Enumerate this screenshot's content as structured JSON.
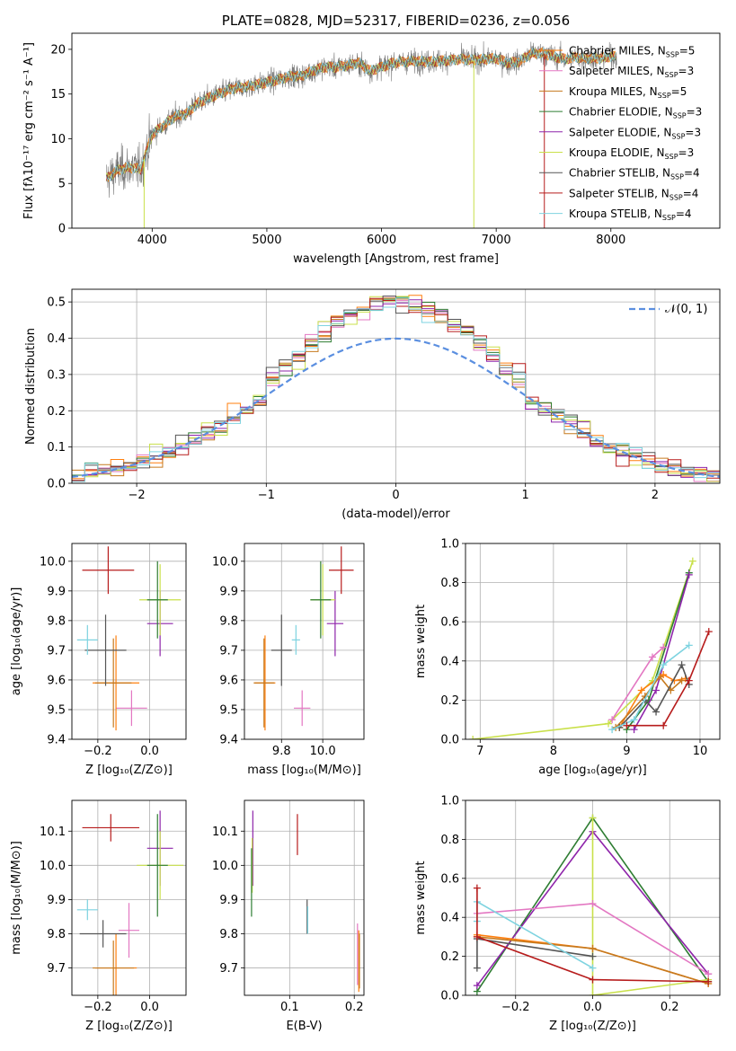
{
  "colors": {
    "chabrier_miles": "#ff7f0e",
    "salpeter_miles": "#e377c2",
    "kroupa_miles": "#c67a1f",
    "chabrier_elodie": "#2e7d32",
    "salpeter_elodie": "#8e24aa",
    "kroupa_elodie": "#c9e04a",
    "chabrier_stelib": "#555555",
    "salpeter_stelib": "#b71c1c",
    "kroupa_stelib": "#7ed3e0",
    "gaussian": "#5b8fe0",
    "grid": "#b0b0b0"
  },
  "chart_data": [
    {
      "id": "spectrum",
      "type": "line",
      "title": "PLATE=0828, MJD=52317, FIBERID=0236, z=0.056",
      "xlabel": "wavelength [Angstrom, rest frame]",
      "ylabel": "Flux [fλ10⁻¹⁷ erg cm⁻² s⁻¹ A⁻¹]",
      "xlim": [
        3300,
        8950
      ],
      "ylim": [
        0,
        21.8
      ],
      "xticks": [
        4000,
        5000,
        6000,
        7000,
        8000
      ],
      "yticks": [
        0,
        5,
        10,
        15,
        20
      ],
      "grid": false,
      "legend_position": "top-right",
      "legend": [
        {
          "label": "Chabrier MILES, N",
          "sub": "SSP",
          "tail": "=5",
          "color_key": "chabrier_miles"
        },
        {
          "label": "Salpeter MILES, N",
          "sub": "SSP",
          "tail": "=3",
          "color_key": "salpeter_miles"
        },
        {
          "label": "Kroupa MILES, N",
          "sub": "SSP",
          "tail": "=5",
          "color_key": "kroupa_miles"
        },
        {
          "label": "Chabrier ELODIE, N",
          "sub": "SSP",
          "tail": "=3",
          "color_key": "chabrier_elodie"
        },
        {
          "label": "Salpeter ELODIE, N",
          "sub": "SSP",
          "tail": "=3",
          "color_key": "salpeter_elodie"
        },
        {
          "label": "Kroupa ELODIE, N",
          "sub": "SSP",
          "tail": "=3",
          "color_key": "kroupa_elodie"
        },
        {
          "label": "Chabrier STELIB, N",
          "sub": "SSP",
          "tail": "=4",
          "color_key": "chabrier_stelib"
        },
        {
          "label": "Salpeter STELIB, N",
          "sub": "SSP",
          "tail": "=4",
          "color_key": "salpeter_stelib"
        },
        {
          "label": "Kroupa STELIB, N",
          "sub": "SSP",
          "tail": "=4",
          "color_key": "kroupa_stelib"
        }
      ],
      "continuum": [
        [
          3600,
          5.5
        ],
        [
          3700,
          6.5
        ],
        [
          3800,
          6.8
        ],
        [
          3900,
          6.6
        ],
        [
          4000,
          10.5
        ],
        [
          4100,
          11.5
        ],
        [
          4200,
          12.5
        ],
        [
          4300,
          12.8
        ],
        [
          4400,
          14.0
        ],
        [
          4500,
          14.6
        ],
        [
          4600,
          15.1
        ],
        [
          4700,
          15.6
        ],
        [
          4800,
          15.8
        ],
        [
          4900,
          16.0
        ],
        [
          5000,
          16.3
        ],
        [
          5100,
          16.6
        ],
        [
          5200,
          17.0
        ],
        [
          5300,
          17.0
        ],
        [
          5400,
          17.6
        ],
        [
          5500,
          18.0
        ],
        [
          5600,
          18.0
        ],
        [
          5700,
          18.2
        ],
        [
          5800,
          18.5
        ],
        [
          5900,
          17.6
        ],
        [
          6000,
          18.0
        ],
        [
          6100,
          18.5
        ],
        [
          6200,
          18.6
        ],
        [
          6300,
          18.7
        ],
        [
          6400,
          18.6
        ],
        [
          6500,
          18.7
        ],
        [
          6600,
          18.8
        ],
        [
          6700,
          18.9
        ],
        [
          6800,
          18.8
        ],
        [
          6900,
          18.9
        ],
        [
          7000,
          19.0
        ],
        [
          7100,
          18.5
        ],
        [
          7200,
          18.6
        ],
        [
          7300,
          19.5
        ],
        [
          7400,
          19.6
        ],
        [
          7500,
          19.2
        ],
        [
          7600,
          18.9
        ],
        [
          7700,
          19.1
        ],
        [
          7800,
          19.0
        ],
        [
          7900,
          19.0
        ],
        [
          8000,
          19.2
        ]
      ],
      "wavelength_range": [
        3600,
        8050
      ],
      "data_color": "#777777",
      "model_color": "#7ed3e0",
      "dropouts": [
        {
          "x": 3930,
          "y": 0
        },
        {
          "x": 6805,
          "y": 0
        },
        {
          "x": 7420,
          "y": 0
        }
      ]
    },
    {
      "id": "residuals",
      "type": "histogram",
      "xlabel": "(data-model)/error",
      "ylabel": "Normed distribution",
      "xlim": [
        -2.5,
        2.5
      ],
      "ylim": [
        0,
        0.535
      ],
      "xticks": [
        -2,
        -1,
        0,
        1,
        2
      ],
      "yticks": [
        0.0,
        0.1,
        0.2,
        0.3,
        0.4,
        0.5
      ],
      "grid": true,
      "legend_position": "top-right",
      "legend_label": "𝒩(0, 1)",
      "bin_width": 0.1,
      "bin_start": -2.5,
      "series_color_keys": [
        "chabrier_miles",
        "salpeter_miles",
        "kroupa_miles",
        "chabrier_elodie",
        "salpeter_elodie",
        "kroupa_elodie",
        "chabrier_stelib",
        "salpeter_stelib",
        "kroupa_stelib"
      ]
    },
    {
      "id": "age_vs_Z",
      "type": "errorbar",
      "xlabel": "Z [log₁₀(Z/Z⊙)]",
      "ylabel": "age  [log₁₀(age/yr)]",
      "xlim": [
        -0.3,
        0.14
      ],
      "ylim": [
        9.4,
        10.06
      ],
      "xticks": [
        -0.2,
        0.0
      ],
      "xticklabels": [
        "−0.2",
        "0.0"
      ],
      "yticks": [
        9.4,
        9.5,
        9.6,
        9.7,
        9.8,
        9.9,
        10.0
      ],
      "grid": true,
      "points": [
        {
          "x": -0.07,
          "y": 9.505,
          "xerr": 0.06,
          "yerr": 0.06,
          "color_key": "salpeter_miles"
        },
        {
          "x": -0.13,
          "y": 9.59,
          "xerr": 0.09,
          "yerr": 0.16,
          "color_key": "chabrier_miles"
        },
        {
          "x": -0.14,
          "y": 9.59,
          "xerr": 0.07,
          "yerr": 0.15,
          "color_key": "kroupa_miles"
        },
        {
          "x": -0.17,
          "y": 9.7,
          "xerr": 0.08,
          "yerr": 0.12,
          "color_key": "chabrier_stelib"
        },
        {
          "x": -0.24,
          "y": 9.735,
          "xerr": 0.04,
          "yerr": 0.05,
          "color_key": "kroupa_stelib"
        },
        {
          "x": 0.04,
          "y": 9.79,
          "xerr": 0.05,
          "yerr": 0.11,
          "color_key": "salpeter_elodie"
        },
        {
          "x": 0.04,
          "y": 9.87,
          "xerr": 0.08,
          "yerr": 0.12,
          "color_key": "kroupa_elodie"
        },
        {
          "x": 0.03,
          "y": 9.87,
          "xerr": 0.04,
          "yerr": 0.13,
          "color_key": "chabrier_elodie"
        },
        {
          "x": -0.16,
          "y": 9.97,
          "xerr": 0.1,
          "yerr": 0.08,
          "color_key": "salpeter_stelib"
        }
      ]
    },
    {
      "id": "age_vs_mass",
      "type": "errorbar",
      "xlabel": "mass [log₁₀(M/M⊙)]",
      "xlim": [
        9.62,
        10.2
      ],
      "ylim": [
        9.4,
        10.06
      ],
      "xticks": [
        9.8,
        10.0
      ],
      "xticklabels": [
        "9.8",
        "10.0"
      ],
      "yticks": [
        9.4,
        9.5,
        9.6,
        9.7,
        9.8,
        9.9,
        10.0
      ],
      "grid": true,
      "points": [
        {
          "x": 9.9,
          "y": 9.505,
          "xerr": 0.04,
          "yerr": 0.06,
          "color_key": "salpeter_miles"
        },
        {
          "x": 9.72,
          "y": 9.59,
          "xerr": 0.05,
          "yerr": 0.16,
          "color_key": "chabrier_miles"
        },
        {
          "x": 9.715,
          "y": 9.59,
          "xerr": 0.05,
          "yerr": 0.15,
          "color_key": "kroupa_miles"
        },
        {
          "x": 9.8,
          "y": 9.7,
          "xerr": 0.05,
          "yerr": 0.12,
          "color_key": "chabrier_stelib"
        },
        {
          "x": 9.87,
          "y": 9.735,
          "xerr": 0.02,
          "yerr": 0.05,
          "color_key": "kroupa_stelib"
        },
        {
          "x": 10.06,
          "y": 9.79,
          "xerr": 0.04,
          "yerr": 0.11,
          "color_key": "salpeter_elodie"
        },
        {
          "x": 10.0,
          "y": 9.87,
          "xerr": 0.06,
          "yerr": 0.12,
          "color_key": "kroupa_elodie"
        },
        {
          "x": 9.99,
          "y": 9.87,
          "xerr": 0.05,
          "yerr": 0.13,
          "color_key": "chabrier_elodie"
        },
        {
          "x": 10.09,
          "y": 9.97,
          "xerr": 0.06,
          "yerr": 0.08,
          "color_key": "salpeter_stelib"
        }
      ]
    },
    {
      "id": "weight_vs_age",
      "type": "line",
      "xlabel": "age  [log₁₀(age/yr)]",
      "ylabel": "mass weight",
      "xlim": [
        6.8,
        10.27
      ],
      "ylim": [
        0,
        1.0
      ],
      "xticks": [
        7,
        8,
        9,
        10
      ],
      "yticks": [
        0.0,
        0.2,
        0.4,
        0.6,
        0.8,
        1.0
      ],
      "grid": true,
      "series": [
        {
          "color_key": "kroupa_elodie",
          "x": [
            6.9,
            8.75,
            9.35,
            9.9
          ],
          "y": [
            0.0,
            0.08,
            0.3,
            0.91
          ]
        },
        {
          "color_key": "chabrier_elodie",
          "x": [
            9.0,
            9.3,
            9.85
          ],
          "y": [
            0.05,
            0.2,
            0.85
          ]
        },
        {
          "color_key": "salpeter_elodie",
          "x": [
            9.1,
            9.4,
            9.85
          ],
          "y": [
            0.05,
            0.25,
            0.84
          ]
        },
        {
          "color_key": "salpeter_miles",
          "x": [
            8.8,
            9.35,
            9.5
          ],
          "y": [
            0.1,
            0.42,
            0.47
          ]
        },
        {
          "color_key": "chabrier_miles",
          "x": [
            8.9,
            9.2,
            9.5,
            9.65,
            9.8
          ],
          "y": [
            0.06,
            0.25,
            0.33,
            0.3,
            0.31
          ]
        },
        {
          "color_key": "kroupa_miles",
          "x": [
            8.85,
            9.25,
            9.45,
            9.6,
            9.75
          ],
          "y": [
            0.06,
            0.22,
            0.32,
            0.25,
            0.3
          ]
        },
        {
          "color_key": "chabrier_stelib",
          "x": [
            8.9,
            9.25,
            9.4,
            9.75,
            9.85
          ],
          "y": [
            0.06,
            0.2,
            0.14,
            0.38,
            0.28
          ]
        },
        {
          "color_key": "kroupa_stelib",
          "x": [
            8.8,
            9.1,
            9.5,
            9.85
          ],
          "y": [
            0.05,
            0.1,
            0.38,
            0.48
          ]
        },
        {
          "color_key": "salpeter_stelib",
          "x": [
            9.0,
            9.5,
            9.85,
            10.12
          ],
          "y": [
            0.07,
            0.07,
            0.3,
            0.55
          ]
        }
      ]
    },
    {
      "id": "mass_vs_Z",
      "type": "errorbar",
      "xlabel": "Z [log₁₀(Z/Z⊙)]",
      "ylabel": "mass [log₁₀(M/M⊙)]",
      "xlim": [
        -0.3,
        0.14
      ],
      "ylim": [
        9.62,
        10.19
      ],
      "xticks": [
        -0.2,
        0.0
      ],
      "xticklabels": [
        "−0.2",
        "0.0"
      ],
      "yticks": [
        9.7,
        9.8,
        9.9,
        10.0,
        10.1
      ],
      "grid": true,
      "points": [
        {
          "x": -0.08,
          "y": 9.81,
          "xerr": 0.04,
          "yerr": 0.08,
          "color_key": "salpeter_miles"
        },
        {
          "x": -0.13,
          "y": 9.7,
          "xerr": 0.08,
          "yerr": 0.1,
          "color_key": "chabrier_miles"
        },
        {
          "x": -0.14,
          "y": 9.7,
          "xerr": 0.08,
          "yerr": 0.08,
          "color_key": "kroupa_miles"
        },
        {
          "x": -0.18,
          "y": 9.8,
          "xerr": 0.09,
          "yerr": 0.04,
          "color_key": "chabrier_stelib"
        },
        {
          "x": -0.24,
          "y": 9.87,
          "xerr": 0.04,
          "yerr": 0.03,
          "color_key": "kroupa_stelib"
        },
        {
          "x": 0.04,
          "y": 10.05,
          "xerr": 0.05,
          "yerr": 0.11,
          "color_key": "salpeter_elodie"
        },
        {
          "x": 0.04,
          "y": 10.0,
          "xerr": 0.09,
          "yerr": 0.1,
          "color_key": "kroupa_elodie"
        },
        {
          "x": 0.03,
          "y": 10.0,
          "xerr": 0.04,
          "yerr": 0.15,
          "color_key": "chabrier_elodie"
        },
        {
          "x": -0.15,
          "y": 10.11,
          "xerr": 0.11,
          "yerr": 0.04,
          "color_key": "salpeter_stelib"
        }
      ]
    },
    {
      "id": "mass_vs_ebv",
      "type": "errorbar",
      "xlabel": "E(B-V)",
      "xlim": [
        0.03,
        0.215
      ],
      "ylim": [
        9.62,
        10.19
      ],
      "xticks": [
        0.1,
        0.2
      ],
      "xticklabels": [
        "0.1",
        "0.2"
      ],
      "yticks": [
        9.7,
        9.8,
        9.9,
        10.0,
        10.1
      ],
      "grid": true,
      "points": [
        {
          "x": 0.043,
          "y": 10.05,
          "xerr": 0.0,
          "yerr": 0.11,
          "color_key": "salpeter_elodie"
        },
        {
          "x": 0.042,
          "y": 10.0,
          "xerr": 0.0,
          "yerr": 0.08,
          "color_key": "kroupa_elodie"
        },
        {
          "x": 0.041,
          "y": 9.95,
          "xerr": 0.0,
          "yerr": 0.1,
          "color_key": "chabrier_elodie"
        },
        {
          "x": 0.112,
          "y": 10.09,
          "xerr": 0.0,
          "yerr": 0.06,
          "color_key": "salpeter_stelib"
        },
        {
          "x": 0.127,
          "y": 9.85,
          "xerr": 0.0,
          "yerr": 0.05,
          "color_key": "chabrier_stelib"
        },
        {
          "x": 0.128,
          "y": 9.84,
          "xerr": 0.0,
          "yerr": 0.04,
          "color_key": "kroupa_stelib"
        },
        {
          "x": 0.205,
          "y": 9.74,
          "xerr": 0.0,
          "yerr": 0.09,
          "color_key": "salpeter_miles"
        },
        {
          "x": 0.207,
          "y": 9.72,
          "xerr": 0.0,
          "yerr": 0.09,
          "color_key": "chabrier_miles"
        },
        {
          "x": 0.208,
          "y": 9.72,
          "xerr": 0.0,
          "yerr": 0.08,
          "color_key": "kroupa_miles"
        }
      ]
    },
    {
      "id": "weight_vs_Z",
      "type": "line",
      "xlabel": "Z [log₁₀(Z/Z⊙)]",
      "ylabel": "mass weight",
      "xlim": [
        -0.33,
        0.33
      ],
      "ylim": [
        0,
        1.0
      ],
      "xticks": [
        -0.2,
        0.0,
        0.2
      ],
      "xticklabels": [
        "−0.2",
        "0.0",
        "0.2"
      ],
      "yticks": [
        0.0,
        0.2,
        0.4,
        0.6,
        0.8,
        1.0
      ],
      "grid": true,
      "series": [
        {
          "color_key": "chabrier_elodie",
          "x": [
            -0.3,
            0.0,
            0.3
          ],
          "y": [
            0.02,
            0.91,
            0.07
          ]
        },
        {
          "color_key": "salpeter_elodie",
          "x": [
            -0.3,
            0.0,
            0.3
          ],
          "y": [
            0.05,
            0.84,
            0.11
          ]
        },
        {
          "color_key": "kroupa_elodie",
          "x": [
            0.0,
            0.0,
            0.3
          ],
          "y": [
            0.91,
            0.0,
            0.08
          ]
        },
        {
          "color_key": "salpeter_miles",
          "x": [
            -0.3,
            0.0,
            0.3
          ],
          "y": [
            0.42,
            0.47,
            0.11
          ]
        },
        {
          "color_key": "chabrier_miles",
          "x": [
            -0.3,
            0.0,
            0.3
          ],
          "y": [
            0.31,
            0.24,
            0.06
          ]
        },
        {
          "color_key": "kroupa_miles",
          "x": [
            -0.3,
            0.0,
            0.3
          ],
          "y": [
            0.3,
            0.24,
            0.06
          ]
        },
        {
          "color_key": "chabrier_stelib",
          "x": [
            -0.3,
            -0.3,
            0.0
          ],
          "y": [
            0.14,
            0.29,
            0.2
          ]
        },
        {
          "color_key": "kroupa_stelib",
          "x": [
            -0.3,
            -0.3,
            0.0
          ],
          "y": [
            0.38,
            0.48,
            0.14
          ]
        },
        {
          "color_key": "salpeter_stelib",
          "x": [
            -0.3,
            -0.3,
            0.0,
            0.3
          ],
          "y": [
            0.55,
            0.3,
            0.08,
            0.07
          ]
        }
      ]
    }
  ]
}
